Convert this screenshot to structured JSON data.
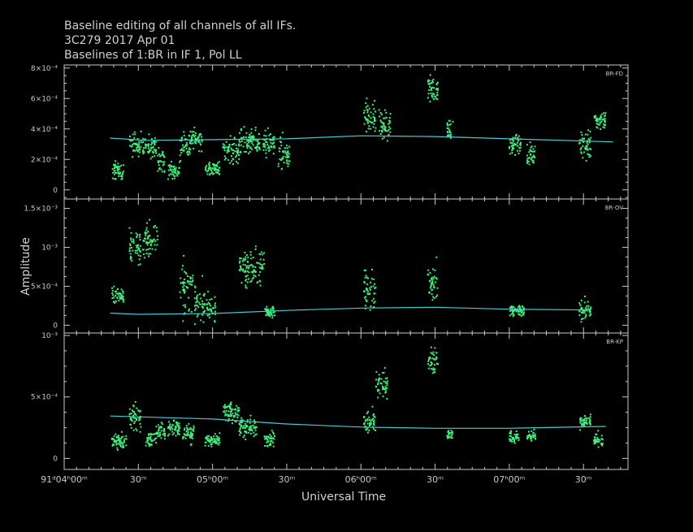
{
  "header": {
    "line1": "Baseline editing of all channels of all IFs.",
    "line2": "3C279   2017 Apr 01",
    "line3": "Baselines of 1:BR in IF 1, Pol LL"
  },
  "colors": {
    "background": "#000000",
    "axes": "#c8c8c8",
    "points": "#3ef07a",
    "model_line": "#3ecfd6"
  },
  "chart_data": [
    {
      "type": "scatter",
      "panel": "BR-FD",
      "ylabel": "Amplitude",
      "xlabel": "Universal Time",
      "x_range_hours": [
        4.0,
        7.8
      ],
      "ylim": [
        -6e-05,
        0.00082
      ],
      "y_ticks": [
        0,
        0.0002,
        0.0004,
        0.0006,
        0.0008
      ],
      "y_tick_labels": [
        "0",
        "2×10⁻⁴",
        "4×10⁻⁴",
        "6×10⁻⁴",
        "8×10⁻⁴"
      ],
      "model_line": [
        [
          4.31,
          0.00034
        ],
        [
          4.55,
          0.000325
        ],
        [
          5.5,
          0.000335
        ],
        [
          6.0,
          0.000355
        ],
        [
          6.5,
          0.00035
        ],
        [
          7.0,
          0.000335
        ],
        [
          7.7,
          0.000315
        ]
      ],
      "scans": [
        {
          "start": 4.32,
          "end": 4.4,
          "mean": 0.00012,
          "spread": 5e-05
        },
        {
          "start": 4.44,
          "end": 4.52,
          "mean": 0.0003,
          "spread": 6e-05
        },
        {
          "start": 4.53,
          "end": 4.62,
          "mean": 0.00028,
          "spread": 6e-05
        },
        {
          "start": 4.63,
          "end": 4.68,
          "mean": 0.0002,
          "spread": 6e-05
        },
        {
          "start": 4.7,
          "end": 4.78,
          "mean": 0.00012,
          "spread": 5e-05
        },
        {
          "start": 4.78,
          "end": 4.85,
          "mean": 0.0003,
          "spread": 8e-05
        },
        {
          "start": 4.85,
          "end": 4.93,
          "mean": 0.00033,
          "spread": 5e-05
        },
        {
          "start": 4.95,
          "end": 5.05,
          "mean": 0.00014,
          "spread": 4e-05
        },
        {
          "start": 5.07,
          "end": 5.18,
          "mean": 0.00026,
          "spread": 7e-05
        },
        {
          "start": 5.18,
          "end": 5.32,
          "mean": 0.00031,
          "spread": 7e-05
        },
        {
          "start": 5.34,
          "end": 5.42,
          "mean": 0.0003,
          "spread": 7e-05
        },
        {
          "start": 5.44,
          "end": 5.52,
          "mean": 0.00024,
          "spread": 9e-05
        },
        {
          "start": 6.02,
          "end": 6.1,
          "mean": 0.00048,
          "spread": 9e-05
        },
        {
          "start": 6.12,
          "end": 6.2,
          "mean": 0.00042,
          "spread": 7e-05
        },
        {
          "start": 6.45,
          "end": 6.52,
          "mean": 0.00066,
          "spread": 7e-05
        },
        {
          "start": 6.58,
          "end": 6.62,
          "mean": 0.0004,
          "spread": 5e-05
        },
        {
          "start": 7.0,
          "end": 7.08,
          "mean": 0.0003,
          "spread": 5e-05
        },
        {
          "start": 7.12,
          "end": 7.18,
          "mean": 0.00023,
          "spread": 6e-05
        },
        {
          "start": 7.47,
          "end": 7.55,
          "mean": 0.0003,
          "spread": 9e-05
        },
        {
          "start": 7.57,
          "end": 7.65,
          "mean": 0.00046,
          "spread": 5e-05
        }
      ]
    },
    {
      "type": "scatter",
      "panel": "BR-OV",
      "ylabel": "Amplitude",
      "xlabel": "Universal Time",
      "x_range_hours": [
        4.0,
        7.8
      ],
      "ylim": [
        -0.0001,
        0.00162
      ],
      "y_ticks": [
        0,
        0.0005,
        0.001,
        0.0015
      ],
      "y_tick_labels": [
        "0",
        "5×10⁻⁴",
        "10⁻³",
        "1.5×10⁻³"
      ],
      "model_line": [
        [
          4.31,
          0.000155
        ],
        [
          4.5,
          0.00014
        ],
        [
          5.0,
          0.00015
        ],
        [
          5.5,
          0.00019
        ],
        [
          6.0,
          0.00022
        ],
        [
          6.5,
          0.00023
        ],
        [
          7.0,
          0.000205
        ],
        [
          7.55,
          0.000195
        ]
      ],
      "scans": [
        {
          "start": 4.32,
          "end": 4.4,
          "mean": 0.00038,
          "spread": 0.0001
        },
        {
          "start": 4.44,
          "end": 4.52,
          "mean": 0.001,
          "spread": 0.00018
        },
        {
          "start": 4.53,
          "end": 4.63,
          "mean": 0.0011,
          "spread": 0.0002
        },
        {
          "start": 4.78,
          "end": 4.87,
          "mean": 0.00045,
          "spread": 0.00025
        },
        {
          "start": 4.88,
          "end": 4.95,
          "mean": 0.0003,
          "spread": 0.0002
        },
        {
          "start": 4.96,
          "end": 5.02,
          "mean": 0.0002,
          "spread": 0.00015
        },
        {
          "start": 5.18,
          "end": 5.35,
          "mean": 0.00075,
          "spread": 0.00018
        },
        {
          "start": 5.35,
          "end": 5.42,
          "mean": 0.00018,
          "spread": 6e-05
        },
        {
          "start": 6.02,
          "end": 6.1,
          "mean": 0.00045,
          "spread": 0.00022
        },
        {
          "start": 6.45,
          "end": 6.52,
          "mean": 0.0005,
          "spread": 0.00025
        },
        {
          "start": 7.0,
          "end": 7.1,
          "mean": 0.00018,
          "spread": 6e-05
        },
        {
          "start": 7.47,
          "end": 7.55,
          "mean": 0.0002,
          "spread": 0.0001
        }
      ]
    },
    {
      "type": "scatter",
      "panel": "BR-KP",
      "ylabel": "Amplitude",
      "xlabel": "Universal Time",
      "x_range_hours": [
        4.0,
        7.8
      ],
      "x_ticks_hours": [
        4.0,
        4.5,
        5.0,
        5.5,
        6.0,
        6.5,
        7.0,
        7.5
      ],
      "x_tick_labels": [
        "91ᵈ04ʰ00ᵐ",
        "30ᵐ",
        "05ʰ00ᵐ",
        "30ᵐ",
        "06ʰ00ᵐ",
        "30ᵐ",
        "07ʰ00ᵐ",
        "30ᵐ"
      ],
      "ylim": [
        -9e-05,
        0.00102
      ],
      "y_ticks": [
        0,
        0.0005,
        0.001
      ],
      "y_tick_labels": [
        "0",
        "5×10⁻⁴",
        "10⁻³"
      ],
      "model_line": [
        [
          4.31,
          0.000345
        ],
        [
          5.0,
          0.00032
        ],
        [
          5.5,
          0.00028
        ],
        [
          6.0,
          0.000255
        ],
        [
          6.5,
          0.000245
        ],
        [
          7.0,
          0.000245
        ],
        [
          7.65,
          0.00026
        ]
      ],
      "scans": [
        {
          "start": 4.32,
          "end": 4.42,
          "mean": 0.00013,
          "spread": 5e-05
        },
        {
          "start": 4.44,
          "end": 4.52,
          "mean": 0.00035,
          "spread": 9e-05
        },
        {
          "start": 4.55,
          "end": 4.62,
          "mean": 0.00015,
          "spread": 5e-05
        },
        {
          "start": 4.62,
          "end": 4.68,
          "mean": 0.00022,
          "spread": 6e-05
        },
        {
          "start": 4.7,
          "end": 4.78,
          "mean": 0.00025,
          "spread": 6e-05
        },
        {
          "start": 4.8,
          "end": 4.88,
          "mean": 0.0002,
          "spread": 6e-05
        },
        {
          "start": 4.95,
          "end": 5.05,
          "mean": 0.00015,
          "spread": 4e-05
        },
        {
          "start": 5.07,
          "end": 5.18,
          "mean": 0.00038,
          "spread": 7e-05
        },
        {
          "start": 5.18,
          "end": 5.3,
          "mean": 0.00025,
          "spread": 6e-05
        },
        {
          "start": 5.35,
          "end": 5.42,
          "mean": 0.00015,
          "spread": 5e-05
        },
        {
          "start": 6.02,
          "end": 6.1,
          "mean": 0.0003,
          "spread": 7e-05
        },
        {
          "start": 6.1,
          "end": 6.18,
          "mean": 0.0006,
          "spread": 0.00011
        },
        {
          "start": 6.45,
          "end": 6.52,
          "mean": 0.0008,
          "spread": 8e-05
        },
        {
          "start": 6.58,
          "end": 6.62,
          "mean": 0.0002,
          "spread": 4e-05
        },
        {
          "start": 7.0,
          "end": 7.07,
          "mean": 0.00017,
          "spread": 4e-05
        },
        {
          "start": 7.12,
          "end": 7.18,
          "mean": 0.00018,
          "spread": 4e-05
        },
        {
          "start": 7.47,
          "end": 7.55,
          "mean": 0.0003,
          "spread": 5e-05
        },
        {
          "start": 7.57,
          "end": 7.63,
          "mean": 0.00015,
          "spread": 5e-05
        }
      ]
    }
  ]
}
